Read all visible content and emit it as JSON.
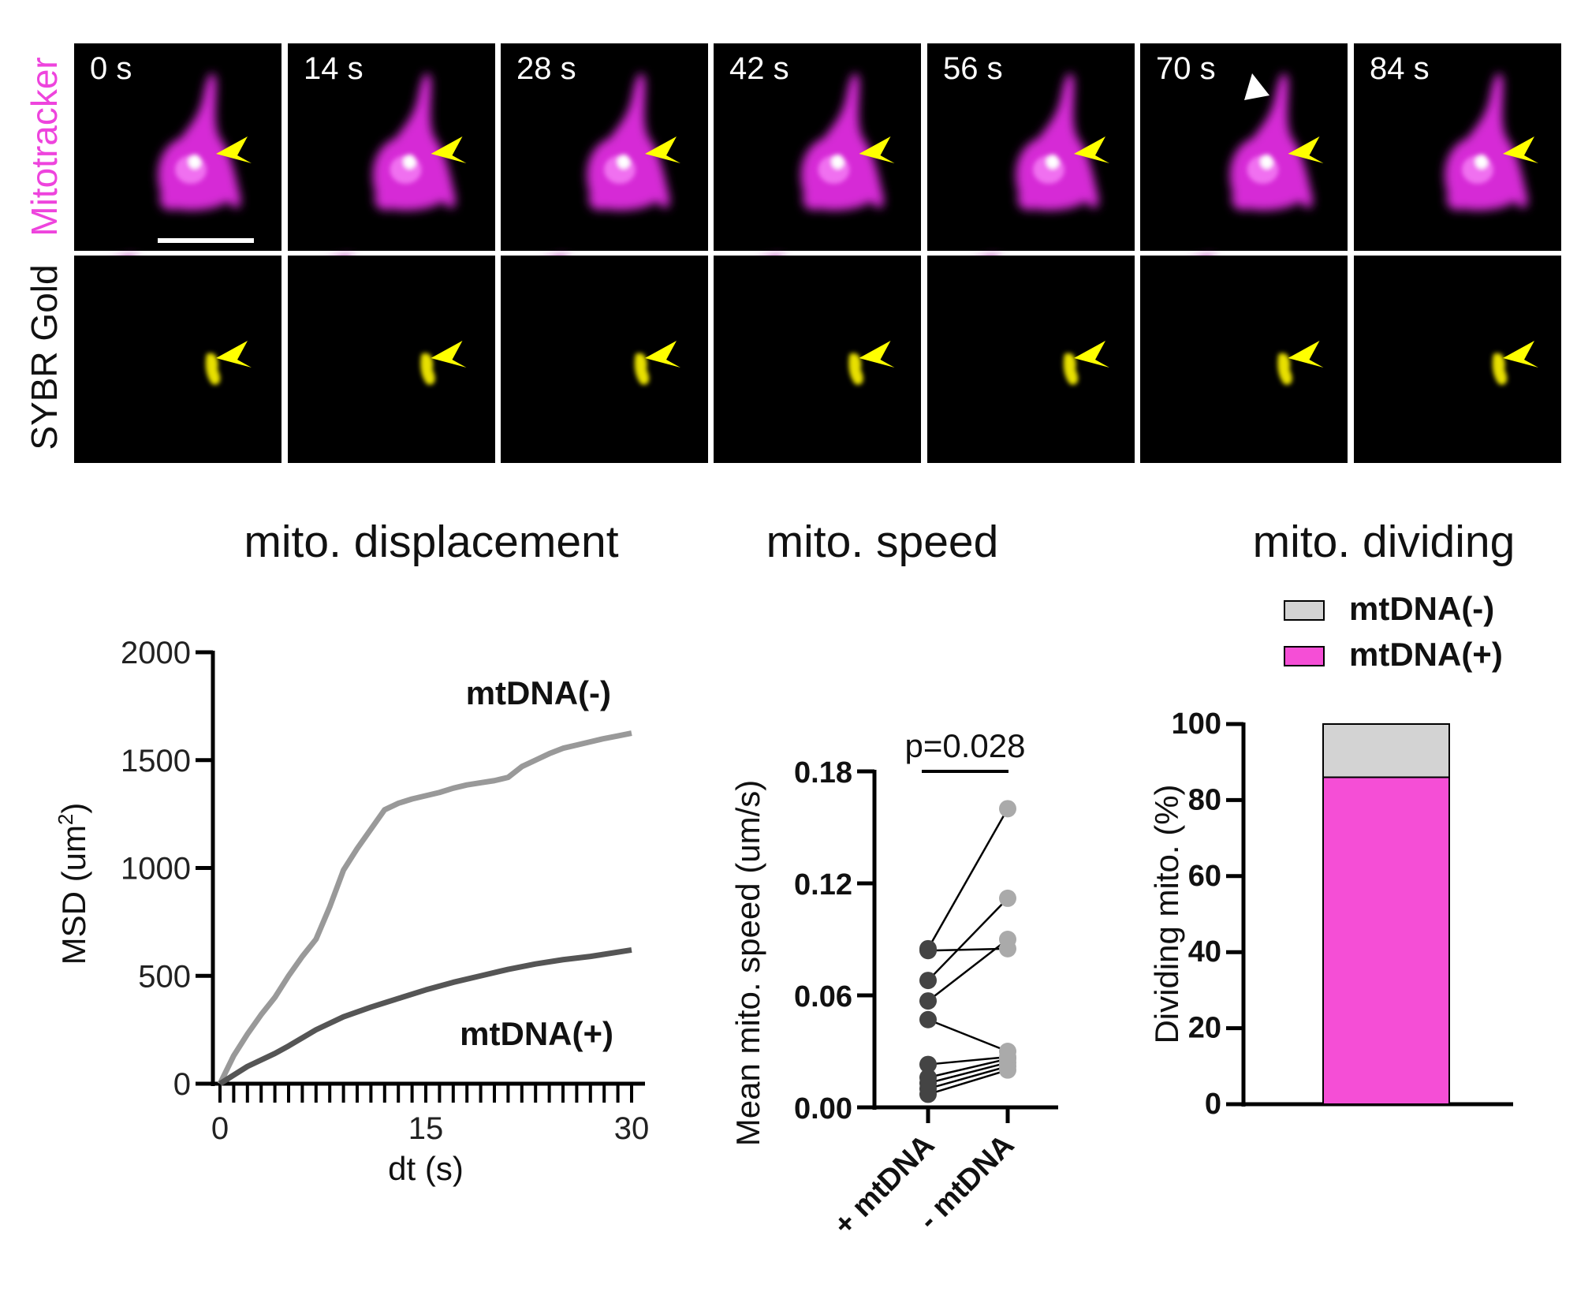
{
  "images": {
    "row_labels": [
      "Mitotracker",
      "SYBR Gold"
    ],
    "row_label_colors": [
      "#ee44dd",
      "#111111"
    ],
    "timestamps": [
      "0 s",
      "14 s",
      "28 s",
      "42 s",
      "56 s",
      "70 s",
      "84 s"
    ],
    "colors": {
      "mitotracker": "#e030e0",
      "sybr": "#f0e000",
      "arrowhead": "#ffff00",
      "division_arrowhead": "#ffffff"
    }
  },
  "titles": {
    "displacement": "mito. displacement",
    "speed": "mito. speed",
    "dividing": "mito. dividing"
  },
  "chart_data": [
    {
      "type": "line",
      "title": "mito. displacement",
      "xlabel": "dt (s)",
      "ylabel": "MSD (um",
      "ylabel_sup": "2",
      "ylabel_end": ")",
      "xlim": [
        0,
        30
      ],
      "ylim": [
        0,
        2000
      ],
      "xticks": [
        "0",
        "15",
        "30"
      ],
      "yticks": [
        "0",
        "500",
        "1000",
        "1500",
        "2000"
      ],
      "series": [
        {
          "name": "mtDNA(-)",
          "color": "#999999",
          "x": [
            0,
            1,
            2,
            3,
            4,
            5,
            6,
            7,
            8,
            9,
            10,
            11,
            12,
            13,
            14,
            15,
            16,
            17,
            18,
            19,
            20,
            21,
            22,
            23,
            24,
            25,
            26,
            27,
            28,
            29,
            30
          ],
          "y": [
            0,
            130,
            230,
            320,
            400,
            500,
            590,
            670,
            820,
            990,
            1090,
            1180,
            1270,
            1300,
            1320,
            1335,
            1350,
            1370,
            1385,
            1395,
            1405,
            1420,
            1470,
            1500,
            1530,
            1555,
            1570,
            1585,
            1600,
            1612,
            1625
          ]
        },
        {
          "name": "mtDNA(+)",
          "color": "#555555",
          "x": [
            0,
            2,
            4,
            5,
            7,
            9,
            11,
            13,
            15,
            17,
            19,
            21,
            23,
            25,
            27,
            30
          ],
          "y": [
            0,
            80,
            140,
            175,
            250,
            310,
            355,
            395,
            435,
            470,
            500,
            530,
            555,
            575,
            590,
            620
          ]
        }
      ]
    },
    {
      "type": "scatter",
      "title": "mito. speed",
      "ylabel": "Mean mito. speed (um/s)",
      "ylim": [
        0,
        0.18
      ],
      "yticks": [
        "0.00",
        "0.06",
        "0.12",
        "0.18"
      ],
      "categories": [
        "+ mtDNA",
        "- mtDNA"
      ],
      "annotation": "p=0.028",
      "colors": [
        "#444444",
        "#aaaaaa"
      ],
      "pairs": [
        [
          0.085,
          0.16
        ],
        [
          0.084,
          0.085
        ],
        [
          0.068,
          0.112
        ],
        [
          0.057,
          0.09
        ],
        [
          0.047,
          0.03
        ],
        [
          0.023,
          0.027
        ],
        [
          0.016,
          0.026
        ],
        [
          0.013,
          0.024
        ],
        [
          0.01,
          0.022
        ],
        [
          0.007,
          0.02
        ]
      ]
    },
    {
      "type": "bar",
      "stacked": true,
      "title": "mito. dividing",
      "ylabel": "Dividing mito. (%)",
      "ylim": [
        0,
        100
      ],
      "yticks": [
        "0",
        "20",
        "40",
        "60",
        "80",
        "100"
      ],
      "legend": "top",
      "series": [
        {
          "name": "mtDNA(-)",
          "value": 14,
          "color": "#d3d3d3"
        },
        {
          "name": "mtDNA(+)",
          "value": 86,
          "color": "#f54ed6"
        }
      ]
    }
  ]
}
